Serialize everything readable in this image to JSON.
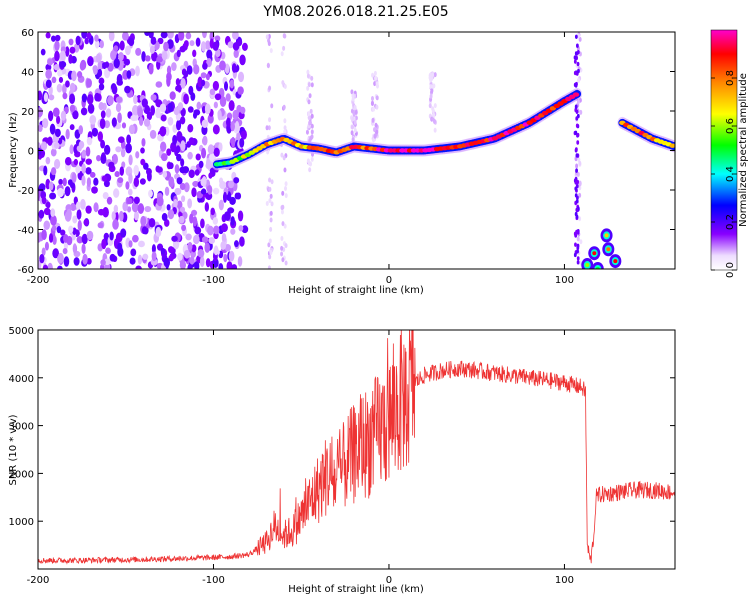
{
  "title": "YM08.2026.018.21.25.E05",
  "chart_data": [
    {
      "type": "heatmap",
      "xlabel": "Height of straight line (km)",
      "ylabel": "Frequency (Hz)",
      "xlim": [
        -200,
        163
      ],
      "ylim": [
        -60,
        60
      ],
      "xticks": [
        "-200",
        "-100",
        "0",
        "100"
      ],
      "xtick_values": [
        -200,
        -100,
        0,
        100
      ],
      "yticks": [
        "60",
        "40",
        "20",
        "0",
        "-20",
        "-40",
        "-60"
      ],
      "ytick_values": [
        60,
        40,
        20,
        0,
        -20,
        -40,
        -60
      ],
      "colorbar": {
        "label": "Normalized spectral amplitude",
        "range": [
          0,
          1
        ],
        "ticks": [
          "0.0",
          "0.2",
          "0.4",
          "0.6",
          "0.8"
        ],
        "tick_values": [
          0.0,
          0.2,
          0.4,
          0.6,
          0.8
        ],
        "colormap": [
          "#ffffff",
          "#7700ee",
          "#0000ff",
          "#00ffff",
          "#00ff00",
          "#ffff00",
          "#ff8800",
          "#ff0000",
          "#ff00ff"
        ]
      },
      "ridge": [
        {
          "x": -98,
          "freq": -7,
          "amp": 0.35
        },
        {
          "x": -90,
          "freq": -6,
          "amp": 0.5
        },
        {
          "x": -80,
          "freq": -2,
          "amp": 0.7
        },
        {
          "x": -70,
          "freq": 3,
          "amp": 0.8
        },
        {
          "x": -60,
          "freq": 6,
          "amp": 0.75
        },
        {
          "x": -50,
          "freq": 2,
          "amp": 0.7
        },
        {
          "x": -40,
          "freq": 1,
          "amp": 0.8
        },
        {
          "x": -30,
          "freq": -1,
          "amp": 0.85
        },
        {
          "x": -20,
          "freq": 2,
          "amp": 0.8
        },
        {
          "x": -10,
          "freq": 1,
          "amp": 0.9
        },
        {
          "x": 0,
          "freq": 0,
          "amp": 1.0
        },
        {
          "x": 20,
          "freq": 0,
          "amp": 1.0
        },
        {
          "x": 40,
          "freq": 2,
          "amp": 0.95
        },
        {
          "x": 60,
          "freq": 6,
          "amp": 0.9
        },
        {
          "x": 80,
          "freq": 14,
          "amp": 0.9
        },
        {
          "x": 100,
          "freq": 25,
          "amp": 0.95
        },
        {
          "x": 108,
          "freq": 29,
          "amp": 0.9
        },
        {
          "x": 133,
          "freq": 14,
          "amp": 0.85
        },
        {
          "x": 150,
          "freq": 6,
          "amp": 0.8
        },
        {
          "x": 163,
          "freq": 2,
          "amp": 0.75
        }
      ],
      "blobs": [
        {
          "x": 113,
          "freq": -58,
          "amp": 0.6
        },
        {
          "x": 117,
          "freq": -52,
          "amp": 0.9
        },
        {
          "x": 119,
          "freq": -60,
          "amp": 0.5
        },
        {
          "x": 124,
          "freq": -43,
          "amp": 0.7
        },
        {
          "x": 125,
          "freq": -50,
          "amp": 0.8
        },
        {
          "x": 129,
          "freq": -56,
          "amp": 0.9
        }
      ]
    },
    {
      "type": "line",
      "xlabel": "Height of straight line (km)",
      "ylabel": "SNR (10 * v/v)",
      "xlim": [
        -200,
        163
      ],
      "ylim": [
        0,
        5000
      ],
      "xticks": [
        "-200",
        "-100",
        "0",
        "100"
      ],
      "xtick_values": [
        -200,
        -100,
        0,
        100
      ],
      "yticks": [
        "5000",
        "4000",
        "3000",
        "2000",
        "1000"
      ],
      "ytick_values": [
        5000,
        4000,
        3000,
        2000,
        1000
      ],
      "color": "#ee3333",
      "x": [
        -200,
        -180,
        -160,
        -140,
        -120,
        -100,
        -90,
        -80,
        -70,
        -65,
        -60,
        -55,
        -50,
        -45,
        -40,
        -35,
        -30,
        -25,
        -20,
        -15,
        -10,
        -5,
        0,
        5,
        10,
        15,
        20,
        25,
        30,
        40,
        50,
        60,
        70,
        80,
        90,
        100,
        110,
        112,
        113,
        115,
        117,
        118,
        120,
        130,
        140,
        150,
        163
      ],
      "values": [
        180,
        180,
        190,
        200,
        220,
        240,
        260,
        300,
        550,
        900,
        700,
        800,
        1100,
        1400,
        1700,
        2000,
        1800,
        2200,
        2400,
        2600,
        2700,
        2900,
        3100,
        3400,
        3650,
        3900,
        4050,
        4100,
        4150,
        4200,
        4150,
        4100,
        4050,
        4000,
        3950,
        3900,
        3800,
        3700,
        500,
        150,
        800,
        1500,
        1550,
        1600,
        1650,
        1650,
        1600
      ]
    }
  ]
}
